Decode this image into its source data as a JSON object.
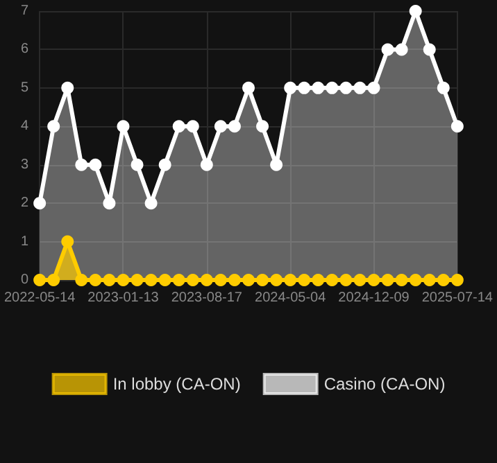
{
  "chart_data": {
    "type": "area",
    "categories": [
      "2022-05-14",
      null,
      null,
      null,
      null,
      null,
      "2023-01-13",
      null,
      null,
      null,
      null,
      null,
      "2023-08-17",
      null,
      null,
      null,
      null,
      null,
      "2024-05-04",
      null,
      null,
      null,
      null,
      null,
      "2024-12-09",
      null,
      null,
      null,
      null,
      null,
      "2025-07-14"
    ],
    "series": [
      {
        "name": "In lobby (CA-ON)",
        "color": "#ffcc00",
        "values": [
          0,
          0,
          1,
          0,
          0,
          0,
          0,
          0,
          0,
          0,
          0,
          0,
          0,
          0,
          0,
          0,
          0,
          0,
          0,
          0,
          0,
          0,
          0,
          0,
          0,
          0,
          0,
          0,
          0,
          0,
          0
        ]
      },
      {
        "name": "Casino (CA-ON)",
        "color": "#ffffff",
        "values": [
          2,
          4,
          5,
          3,
          3,
          2,
          4,
          3,
          2,
          3,
          4,
          4,
          3,
          4,
          4,
          5,
          4,
          3,
          5,
          5,
          5,
          5,
          5,
          5,
          5,
          6,
          6,
          7,
          6,
          5,
          4
        ]
      }
    ],
    "ylim": [
      0,
      7
    ],
    "yticks": [
      0,
      1,
      2,
      3,
      4,
      5,
      6,
      7
    ],
    "grid": true,
    "legend": "bottom",
    "marker": "circle",
    "line_style": "solid"
  }
}
